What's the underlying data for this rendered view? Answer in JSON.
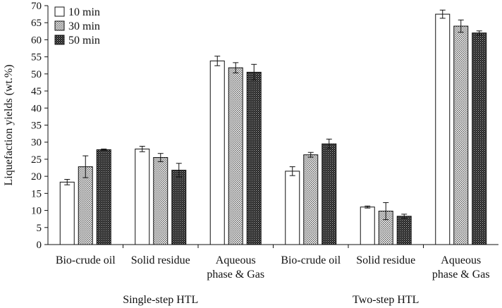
{
  "chart_data": {
    "type": "bar",
    "title": "",
    "xlabel": "",
    "ylabel": "Liquefaction yields (wt.%)",
    "ylim": [
      0,
      70
    ],
    "yticks": [
      0,
      5,
      10,
      15,
      20,
      25,
      30,
      35,
      40,
      45,
      50,
      55,
      60,
      65,
      70
    ],
    "grid": false,
    "legend_position": "top-left",
    "categories": [
      {
        "label": [
          "Bio-crude oil"
        ]
      },
      {
        "label": [
          "Solid residue"
        ]
      },
      {
        "label": [
          "Aqueous",
          "phase & Gas"
        ]
      },
      {
        "label": [
          "Bio-crude oil"
        ]
      },
      {
        "label": [
          "Solid residue"
        ]
      },
      {
        "label": [
          "Aqueous",
          "phase & Gas"
        ]
      }
    ],
    "groups": [
      {
        "label": "Single-step HTL",
        "categories": [
          0,
          1,
          2
        ]
      },
      {
        "label": "Two-step HTL",
        "categories": [
          3,
          4,
          5
        ]
      }
    ],
    "series": [
      {
        "name": "10 min",
        "pattern": "white",
        "values": [
          18.3,
          28.0,
          53.8,
          21.5,
          11.0,
          67.5
        ],
        "errors": [
          0.8,
          0.8,
          1.4,
          1.3,
          0.3,
          1.2
        ]
      },
      {
        "name": "30 min",
        "pattern": "dotted",
        "values": [
          22.8,
          25.5,
          51.8,
          26.3,
          9.8,
          64.0
        ],
        "errors": [
          3.2,
          1.2,
          1.5,
          0.7,
          2.5,
          1.8
        ]
      },
      {
        "name": "50 min",
        "pattern": "dark",
        "values": [
          27.8,
          21.8,
          50.5,
          29.5,
          8.3,
          62.0
        ],
        "errors": [
          0.2,
          2.0,
          2.3,
          1.4,
          0.6,
          0.6
        ]
      }
    ]
  }
}
